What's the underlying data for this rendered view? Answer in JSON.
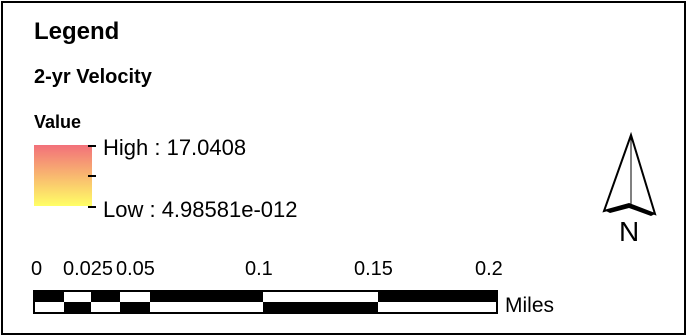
{
  "legend": {
    "title": "Legend",
    "layer_name": "2-yr Velocity",
    "field_name": "Value",
    "high_label": "High : 17.0408",
    "low_label": "Low : 4.98581e-012",
    "ramp_colors": {
      "high": "#f2707a",
      "low": "#ffff66"
    }
  },
  "scale_bar": {
    "labels": [
      "0",
      "0.025",
      "0.05",
      "0.1",
      "0.15",
      "0.2"
    ],
    "units": "Miles"
  },
  "north_arrow": {
    "label": "N"
  }
}
